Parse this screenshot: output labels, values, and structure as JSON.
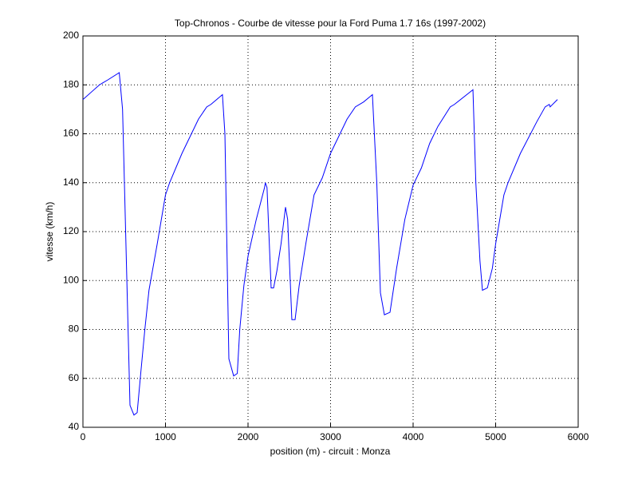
{
  "chart_data": {
    "type": "line",
    "title": "Top-Chronos - Courbe de vitesse pour la Ford Puma 1.7 16s (1997-2002)",
    "x_label": "position (m) - circuit : Monza",
    "y_label": "vitesse (km/h)",
    "grid": true,
    "xlim": [
      0,
      6000
    ],
    "xticks": [
      0,
      1000,
      2000,
      3000,
      4000,
      5000,
      6000
    ],
    "ylim": [
      40,
      200
    ],
    "yticks": [
      40,
      60,
      80,
      100,
      120,
      140,
      160,
      180,
      200
    ],
    "series": [
      {
        "color": "#0000ff",
        "x": [
          0,
          100,
          200,
          300,
          440,
          480,
          570,
          618,
          657,
          700,
          750,
          800,
          900,
          1000,
          1050,
          1200,
          1400,
          1500,
          1550,
          1690,
          1720,
          1768,
          1826,
          1870,
          1900,
          1950,
          2000,
          2100,
          2200,
          2210,
          2230,
          2280,
          2310,
          2350,
          2400,
          2454,
          2480,
          2531,
          2570,
          2620,
          2700,
          2800,
          2900,
          3000,
          3200,
          3300,
          3400,
          3507,
          3560,
          3604,
          3652,
          3720,
          3760,
          3800,
          3900,
          4000,
          4100,
          4200,
          4300,
          4450,
          4500,
          4725,
          4760,
          4810,
          4840,
          4900,
          4960,
          5000,
          5100,
          5150,
          5300,
          5500,
          5600,
          5650,
          5660,
          5749
        ],
        "values": [
          174,
          177,
          180,
          182,
          185,
          170,
          49,
          45,
          46,
          62,
          80,
          96,
          115,
          135,
          140,
          152,
          166,
          171,
          172,
          176,
          160,
          68,
          61,
          62,
          80,
          98,
          110,
          125,
          138,
          140,
          138,
          97,
          97,
          104,
          115,
          130,
          125,
          84,
          84,
          98,
          115,
          135,
          142,
          152,
          166,
          171,
          173,
          176,
          140,
          95,
          86,
          87,
          96,
          105,
          125,
          139,
          146,
          156,
          163,
          171,
          172,
          178,
          140,
          108,
          96,
          97,
          105,
          115,
          135,
          140,
          152,
          165,
          171,
          172,
          171,
          174
        ]
      }
    ]
  }
}
